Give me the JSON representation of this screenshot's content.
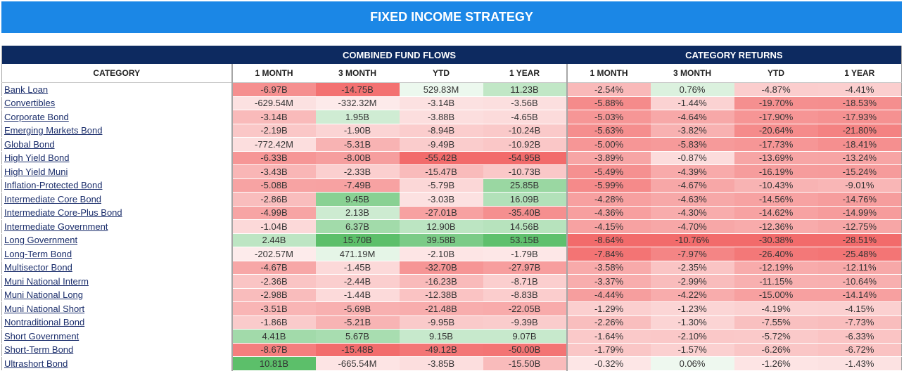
{
  "title": "FIXED INCOME STRATEGY",
  "groups": {
    "flows": "COMBINED FUND FLOWS",
    "returns": "CATEGORY RETURNS"
  },
  "columns": {
    "category": "CATEGORY",
    "flows": [
      "1 MONTH",
      "3 MONTH",
      "YTD",
      "1 YEAR"
    ],
    "returns": [
      "1 MONTH",
      "3 MONTH",
      "YTD",
      "1 YEAR"
    ]
  },
  "rows": [
    {
      "category": "Bank Loan",
      "flows": [
        "-6.97B",
        "-14.75B",
        "529.83M",
        "11.23B"
      ],
      "returns": [
        "-2.54%",
        "0.76%",
        "-4.87%",
        "-4.41%"
      ]
    },
    {
      "category": "Convertibles",
      "flows": [
        "-629.54M",
        "-332.32M",
        "-3.14B",
        "-3.56B"
      ],
      "returns": [
        "-5.88%",
        "-1.44%",
        "-19.70%",
        "-18.53%"
      ]
    },
    {
      "category": "Corporate Bond",
      "flows": [
        "-3.14B",
        "1.95B",
        "-3.88B",
        "-4.65B"
      ],
      "returns": [
        "-5.03%",
        "-4.64%",
        "-17.90%",
        "-17.93%"
      ]
    },
    {
      "category": "Emerging Markets Bond",
      "flows": [
        "-2.19B",
        "-1.90B",
        "-8.94B",
        "-10.24B"
      ],
      "returns": [
        "-5.63%",
        "-3.82%",
        "-20.64%",
        "-21.80%"
      ]
    },
    {
      "category": "Global Bond",
      "flows": [
        "-772.42M",
        "-5.31B",
        "-9.49B",
        "-10.92B"
      ],
      "returns": [
        "-5.00%",
        "-5.83%",
        "-17.73%",
        "-18.41%"
      ]
    },
    {
      "category": "High Yield Bond",
      "flows": [
        "-6.33B",
        "-8.00B",
        "-55.42B",
        "-54.95B"
      ],
      "returns": [
        "-3.89%",
        "-0.87%",
        "-13.69%",
        "-13.24%"
      ]
    },
    {
      "category": "High Yield Muni",
      "flows": [
        "-3.43B",
        "-2.33B",
        "-15.47B",
        "-10.73B"
      ],
      "returns": [
        "-5.49%",
        "-4.39%",
        "-16.19%",
        "-15.24%"
      ]
    },
    {
      "category": "Inflation-Protected Bond",
      "flows": [
        "-5.08B",
        "-7.49B",
        "-5.79B",
        "25.85B"
      ],
      "returns": [
        "-5.99%",
        "-4.67%",
        "-10.43%",
        "-9.01%"
      ]
    },
    {
      "category": "Intermediate Core Bond",
      "flows": [
        "-2.86B",
        "9.45B",
        "-3.03B",
        "16.09B"
      ],
      "returns": [
        "-4.28%",
        "-4.63%",
        "-14.56%",
        "-14.76%"
      ]
    },
    {
      "category": "Intermediate Core-Plus Bond",
      "flows": [
        "-4.99B",
        "2.13B",
        "-27.01B",
        "-35.40B"
      ],
      "returns": [
        "-4.36%",
        "-4.30%",
        "-14.62%",
        "-14.99%"
      ]
    },
    {
      "category": "Intermediate Government",
      "flows": [
        "-1.04B",
        "6.37B",
        "12.90B",
        "14.56B"
      ],
      "returns": [
        "-4.15%",
        "-4.70%",
        "-12.36%",
        "-12.75%"
      ]
    },
    {
      "category": "Long Government",
      "flows": [
        "2.44B",
        "15.70B",
        "39.58B",
        "53.15B"
      ],
      "returns": [
        "-8.64%",
        "-10.76%",
        "-30.38%",
        "-28.51%"
      ]
    },
    {
      "category": "Long-Term Bond",
      "flows": [
        "-202.57M",
        "471.19M",
        "-2.10B",
        "-1.79B"
      ],
      "returns": [
        "-7.84%",
        "-7.97%",
        "-26.40%",
        "-25.48%"
      ]
    },
    {
      "category": "Multisector Bond",
      "flows": [
        "-4.67B",
        "-1.45B",
        "-32.70B",
        "-27.97B"
      ],
      "returns": [
        "-3.58%",
        "-2.35%",
        "-12.19%",
        "-12.11%"
      ]
    },
    {
      "category": "Muni National Interm",
      "flows": [
        "-2.36B",
        "-2.44B",
        "-16.23B",
        "-8.71B"
      ],
      "returns": [
        "-3.37%",
        "-2.99%",
        "-11.15%",
        "-10.64%"
      ]
    },
    {
      "category": "Muni National Long",
      "flows": [
        "-2.98B",
        "-1.44B",
        "-12.38B",
        "-8.83B"
      ],
      "returns": [
        "-4.44%",
        "-4.22%",
        "-15.00%",
        "-14.14%"
      ]
    },
    {
      "category": "Muni National Short",
      "flows": [
        "-3.51B",
        "-5.69B",
        "-21.48B",
        "-22.05B"
      ],
      "returns": [
        "-1.29%",
        "-1.23%",
        "-4.19%",
        "-4.15%"
      ]
    },
    {
      "category": "Nontraditional Bond",
      "flows": [
        "-1.86B",
        "-5.21B",
        "-9.95B",
        "-9.39B"
      ],
      "returns": [
        "-2.26%",
        "-1.30%",
        "-7.55%",
        "-7.73%"
      ]
    },
    {
      "category": "Short Government",
      "flows": [
        "4.41B",
        "5.67B",
        "9.15B",
        "9.07B"
      ],
      "returns": [
        "-1.64%",
        "-2.10%",
        "-5.72%",
        "-6.33%"
      ]
    },
    {
      "category": "Short-Term Bond",
      "flows": [
        "-8.67B",
        "-15.48B",
        "-49.12B",
        "-50.00B"
      ],
      "returns": [
        "-1.79%",
        "-1.57%",
        "-6.26%",
        "-6.72%"
      ]
    },
    {
      "category": "Ultrashort Bond",
      "flows": [
        "10.81B",
        "-665.54M",
        "-3.85B",
        "-15.50B"
      ],
      "returns": [
        "-0.32%",
        "0.06%",
        "-1.26%",
        "-1.43%"
      ]
    }
  ],
  "colors": {
    "title_bar": "#1b87e6",
    "group_header": "#0d2a60",
    "negative": "#f26b6b",
    "positive": "#5cbf6a",
    "category_link": "#1a2d6b"
  }
}
